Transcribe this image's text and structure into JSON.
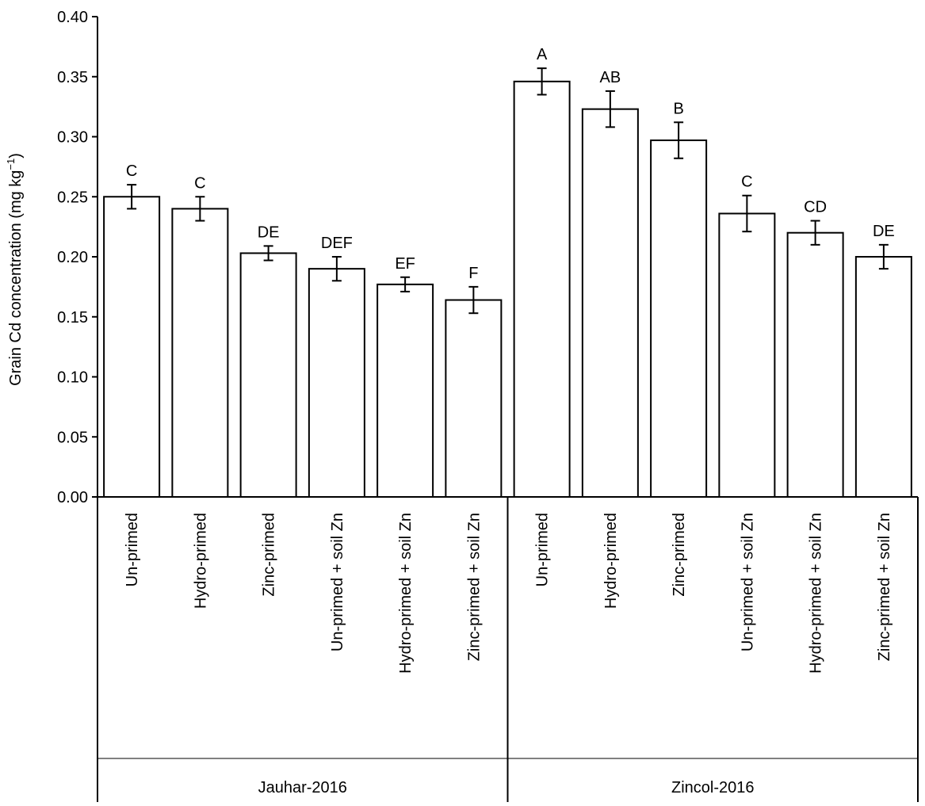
{
  "chart_data": {
    "type": "bar",
    "ylabel_main": "Grain Cd concentration (mg kg",
    "ylabel_sup": "−1",
    "ylabel_close": ")",
    "ylim": [
      0,
      0.4
    ],
    "yticks": [
      "0.00",
      "0.05",
      "0.10",
      "0.15",
      "0.20",
      "0.25",
      "0.30",
      "0.35",
      "0.40"
    ],
    "grid": false,
    "groups": [
      {
        "name": "Jauhar-2016",
        "bars": [
          {
            "category": "Un-primed",
            "value": 0.25,
            "error": 0.01,
            "letter": "C"
          },
          {
            "category": "Hydro-primed",
            "value": 0.24,
            "error": 0.01,
            "letter": "C"
          },
          {
            "category": "Zinc-primed",
            "value": 0.203,
            "error": 0.006,
            "letter": "DE"
          },
          {
            "category": "Un-primed + soil Zn",
            "value": 0.19,
            "error": 0.01,
            "letter": "DEF"
          },
          {
            "category": "Hydro-primed + soil Zn",
            "value": 0.177,
            "error": 0.006,
            "letter": "EF"
          },
          {
            "category": "Zinc-primed + soil Zn",
            "value": 0.164,
            "error": 0.011,
            "letter": "F"
          }
        ]
      },
      {
        "name": "Zincol-2016",
        "bars": [
          {
            "category": "Un-primed",
            "value": 0.346,
            "error": 0.011,
            "letter": "A"
          },
          {
            "category": "Hydro-primed",
            "value": 0.323,
            "error": 0.015,
            "letter": "AB"
          },
          {
            "category": "Zinc-primed",
            "value": 0.297,
            "error": 0.015,
            "letter": "B"
          },
          {
            "category": "Un-primed + soil Zn",
            "value": 0.236,
            "error": 0.015,
            "letter": "C"
          },
          {
            "category": "Hydro-primed + soil Zn",
            "value": 0.22,
            "error": 0.01,
            "letter": "CD"
          },
          {
            "category": "Zinc-primed + soil Zn",
            "value": 0.2,
            "error": 0.01,
            "letter": "DE"
          }
        ]
      }
    ]
  }
}
